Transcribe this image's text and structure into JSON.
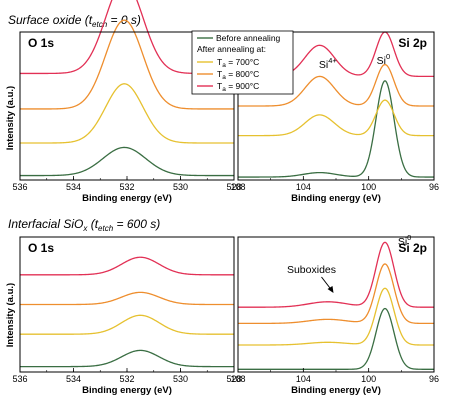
{
  "figure": {
    "sections": [
      {
        "title": "Surface oxide (t",
        "sub": "etch",
        "suffix": " = 0 s)"
      },
      {
        "title": "Interfacial SiO",
        "sub": "x",
        "mid": " (t",
        "sub2": "etch",
        "suffix": " = 600 s)"
      }
    ],
    "xlabel": "Binding energy (eV)",
    "ylabel": "Intensity (a.u.)",
    "legend": {
      "header1": "Before annealing",
      "header2": "After annealing at:",
      "items": [
        {
          "pre": "T",
          "sub": "a",
          "post": " = 700°C"
        },
        {
          "pre": "T",
          "sub": "a",
          "post": " = 800°C"
        },
        {
          "pre": "T",
          "sub": "a",
          "post": " = 900°C"
        }
      ]
    },
    "colors": {
      "before": "#3a6e43",
      "t700": "#e6c130",
      "t800": "#ee8e2e",
      "t900": "#e23055"
    }
  },
  "chart_data": [
    {
      "type": "line",
      "panel": "top-left",
      "title": "O 1s",
      "xlabel": "Binding energy (eV)",
      "ylabel": "Intensity (a.u.)",
      "xlim": [
        536,
        528
      ],
      "xticks": [
        536,
        534,
        532,
        530,
        528
      ],
      "peaks": [
        {
          "name": "Before annealing",
          "center": 532.1,
          "width": 0.8,
          "amplitude": 0.19,
          "offset": 0.03
        },
        {
          "name": "Ta = 700°C",
          "center": 532.1,
          "width": 0.7,
          "amplitude": 0.4,
          "offset": 0.25
        },
        {
          "name": "Ta = 800°C",
          "center": 532.1,
          "width": 0.7,
          "amplitude": 0.6,
          "offset": 0.48
        },
        {
          "name": "Ta = 900°C",
          "center": 532.1,
          "width": 0.7,
          "amplitude": 0.62,
          "offset": 0.72
        }
      ]
    },
    {
      "type": "line",
      "panel": "top-right",
      "title": "Si 2p",
      "xlabel": "Binding energy (eV)",
      "xlim": [
        108,
        96
      ],
      "xticks": [
        108,
        104,
        100,
        96
      ],
      "annotations": [
        {
          "text": "Si",
          "sup": "4+",
          "x": 102.5
        },
        {
          "text": "Si",
          "sup": "0",
          "x": 99.1
        }
      ],
      "series": [
        {
          "name": "Before annealing",
          "offset": 0.02,
          "peaks": [
            {
              "center": 103.0,
              "width": 1.0,
              "amplitude": 0.03
            },
            {
              "center": 99.0,
              "width": 0.55,
              "amplitude": 0.65
            }
          ]
        },
        {
          "name": "Ta = 700°C",
          "offset": 0.3,
          "peaks": [
            {
              "center": 103.0,
              "width": 0.9,
              "amplitude": 0.14
            },
            {
              "center": 99.0,
              "width": 0.55,
              "amplitude": 0.24
            }
          ]
        },
        {
          "name": "Ta = 800°C",
          "offset": 0.5,
          "peaks": [
            {
              "center": 103.0,
              "width": 0.9,
              "amplitude": 0.2
            },
            {
              "center": 99.0,
              "width": 0.55,
              "amplitude": 0.28
            }
          ]
        },
        {
          "name": "Ta = 900°C",
          "offset": 0.7,
          "peaks": [
            {
              "center": 103.0,
              "width": 0.9,
              "amplitude": 0.21
            },
            {
              "center": 99.0,
              "width": 0.55,
              "amplitude": 0.3
            }
          ]
        }
      ]
    },
    {
      "type": "line",
      "panel": "bottom-left",
      "title": "O 1s",
      "xlabel": "Binding energy (eV)",
      "ylabel": "Intensity (a.u.)",
      "xlim": [
        536,
        528
      ],
      "xticks": [
        536,
        534,
        532,
        530,
        528
      ],
      "peaks": [
        {
          "name": "Before annealing",
          "center": 531.5,
          "width": 0.7,
          "amplitude": 0.12,
          "offset": 0.04
        },
        {
          "name": "Ta = 700°C",
          "center": 531.5,
          "width": 0.7,
          "amplitude": 0.14,
          "offset": 0.28
        },
        {
          "name": "Ta = 800°C",
          "center": 531.5,
          "width": 0.7,
          "amplitude": 0.09,
          "offset": 0.5
        },
        {
          "name": "Ta = 900°C",
          "center": 531.5,
          "width": 0.7,
          "amplitude": 0.13,
          "offset": 0.72
        }
      ]
    },
    {
      "type": "line",
      "panel": "bottom-right",
      "title": "Si 2p",
      "xlabel": "Binding energy (eV)",
      "xlim": [
        108,
        96
      ],
      "xticks": [
        108,
        104,
        100,
        96
      ],
      "annotations": [
        {
          "text": "Si",
          "sup": "0",
          "x": 97.8
        },
        {
          "text": "Suboxides",
          "x": 103.5
        }
      ],
      "series": [
        {
          "name": "Before annealing",
          "offset": 0.02,
          "peaks": [
            {
              "center": 99.0,
              "width": 0.55,
              "amplitude": 0.45
            }
          ]
        },
        {
          "name": "Ta = 700°C",
          "offset": 0.2,
          "peaks": [
            {
              "center": 102.5,
              "width": 1.2,
              "amplitude": 0.02
            },
            {
              "center": 99.0,
              "width": 0.55,
              "amplitude": 0.42
            }
          ]
        },
        {
          "name": "Ta = 800°C",
          "offset": 0.36,
          "peaks": [
            {
              "center": 102.5,
              "width": 1.2,
              "amplitude": 0.03
            },
            {
              "center": 99.0,
              "width": 0.55,
              "amplitude": 0.44
            }
          ]
        },
        {
          "name": "Ta = 900°C",
          "offset": 0.48,
          "peaks": [
            {
              "center": 102.5,
              "width": 1.2,
              "amplitude": 0.04
            },
            {
              "center": 99.0,
              "width": 0.55,
              "amplitude": 0.48
            }
          ]
        }
      ]
    }
  ]
}
